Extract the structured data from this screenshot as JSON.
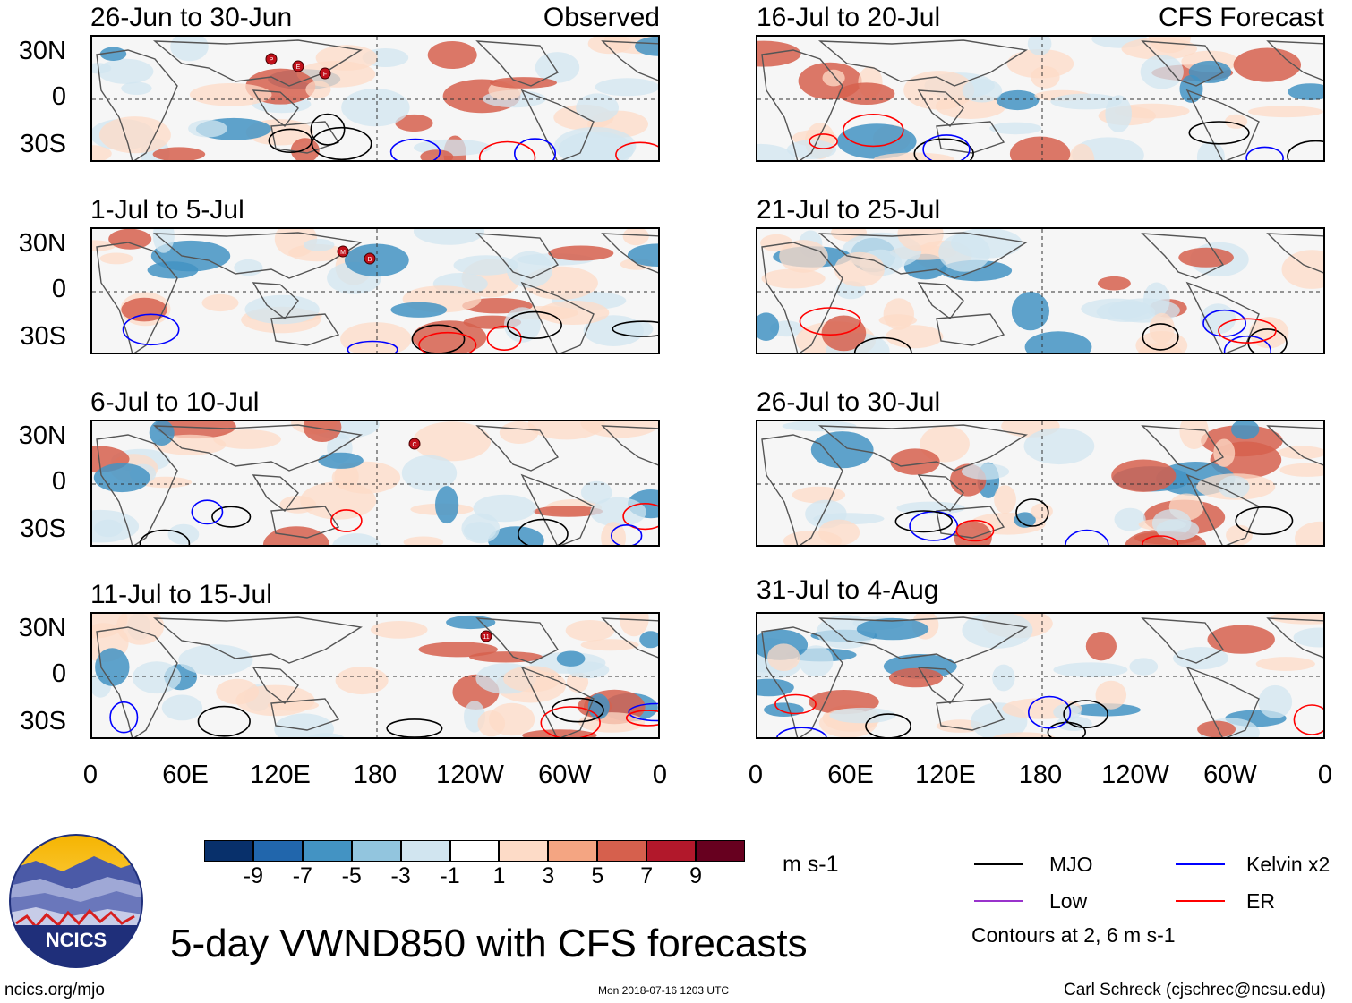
{
  "figure": {
    "title": "5-day VWND850 with CFS forecasts",
    "left_tag": "Observed",
    "right_tag": "CFS Forecast",
    "units": "m s-1",
    "footer_left": "ncics.org/mjo",
    "footer_center": "Mon 2018-07-16 1203 UTC",
    "footer_right": "Carl Schreck (cjschrec@ncsu.edu)",
    "logo_text": "NCICS"
  },
  "chart_data": {
    "type": "heatmap",
    "variable": "850-hPa meridional wind anomaly",
    "lat_ticks": [
      "30N",
      "0",
      "30S"
    ],
    "lon_ticks": [
      "0",
      "60E",
      "120E",
      "180",
      "120W",
      "60W",
      "0"
    ],
    "panels_left": [
      {
        "title": "26-Jun to 30-Jun",
        "storms": [
          "P",
          "E",
          "F"
        ]
      },
      {
        "title": "1-Jul to 5-Jul",
        "storms": [
          "M",
          "B"
        ]
      },
      {
        "title": "6-Jul to 10-Jul",
        "storms": [
          "C"
        ]
      },
      {
        "title": "11-Jul to 15-Jul",
        "storms": [
          "11"
        ]
      }
    ],
    "panels_right": [
      {
        "title": "16-Jul to 20-Jul"
      },
      {
        "title": "21-Jul to 25-Jul"
      },
      {
        "title": "26-Jul to 30-Jul"
      },
      {
        "title": "31-Jul to 4-Aug"
      }
    ],
    "colorbar": {
      "ticks": [
        "-9",
        "-7",
        "-5",
        "-3",
        "-1",
        "1",
        "3",
        "5",
        "7",
        "9"
      ],
      "colors": [
        "#08306b",
        "#2166ac",
        "#4393c3",
        "#92c5de",
        "#d1e5f0",
        "#ffffff",
        "#fddbc7",
        "#f4a582",
        "#d6604d",
        "#b2182b",
        "#67001f"
      ]
    },
    "legend": [
      {
        "label": "MJO",
        "color": "#000000"
      },
      {
        "label": "Kelvin x2",
        "color": "#0000ff"
      },
      {
        "label": "Low",
        "color": "#9933cc"
      },
      {
        "label": "ER",
        "color": "#ff0000"
      }
    ],
    "contour_note": "Contours at 2, 6 m s-1"
  }
}
